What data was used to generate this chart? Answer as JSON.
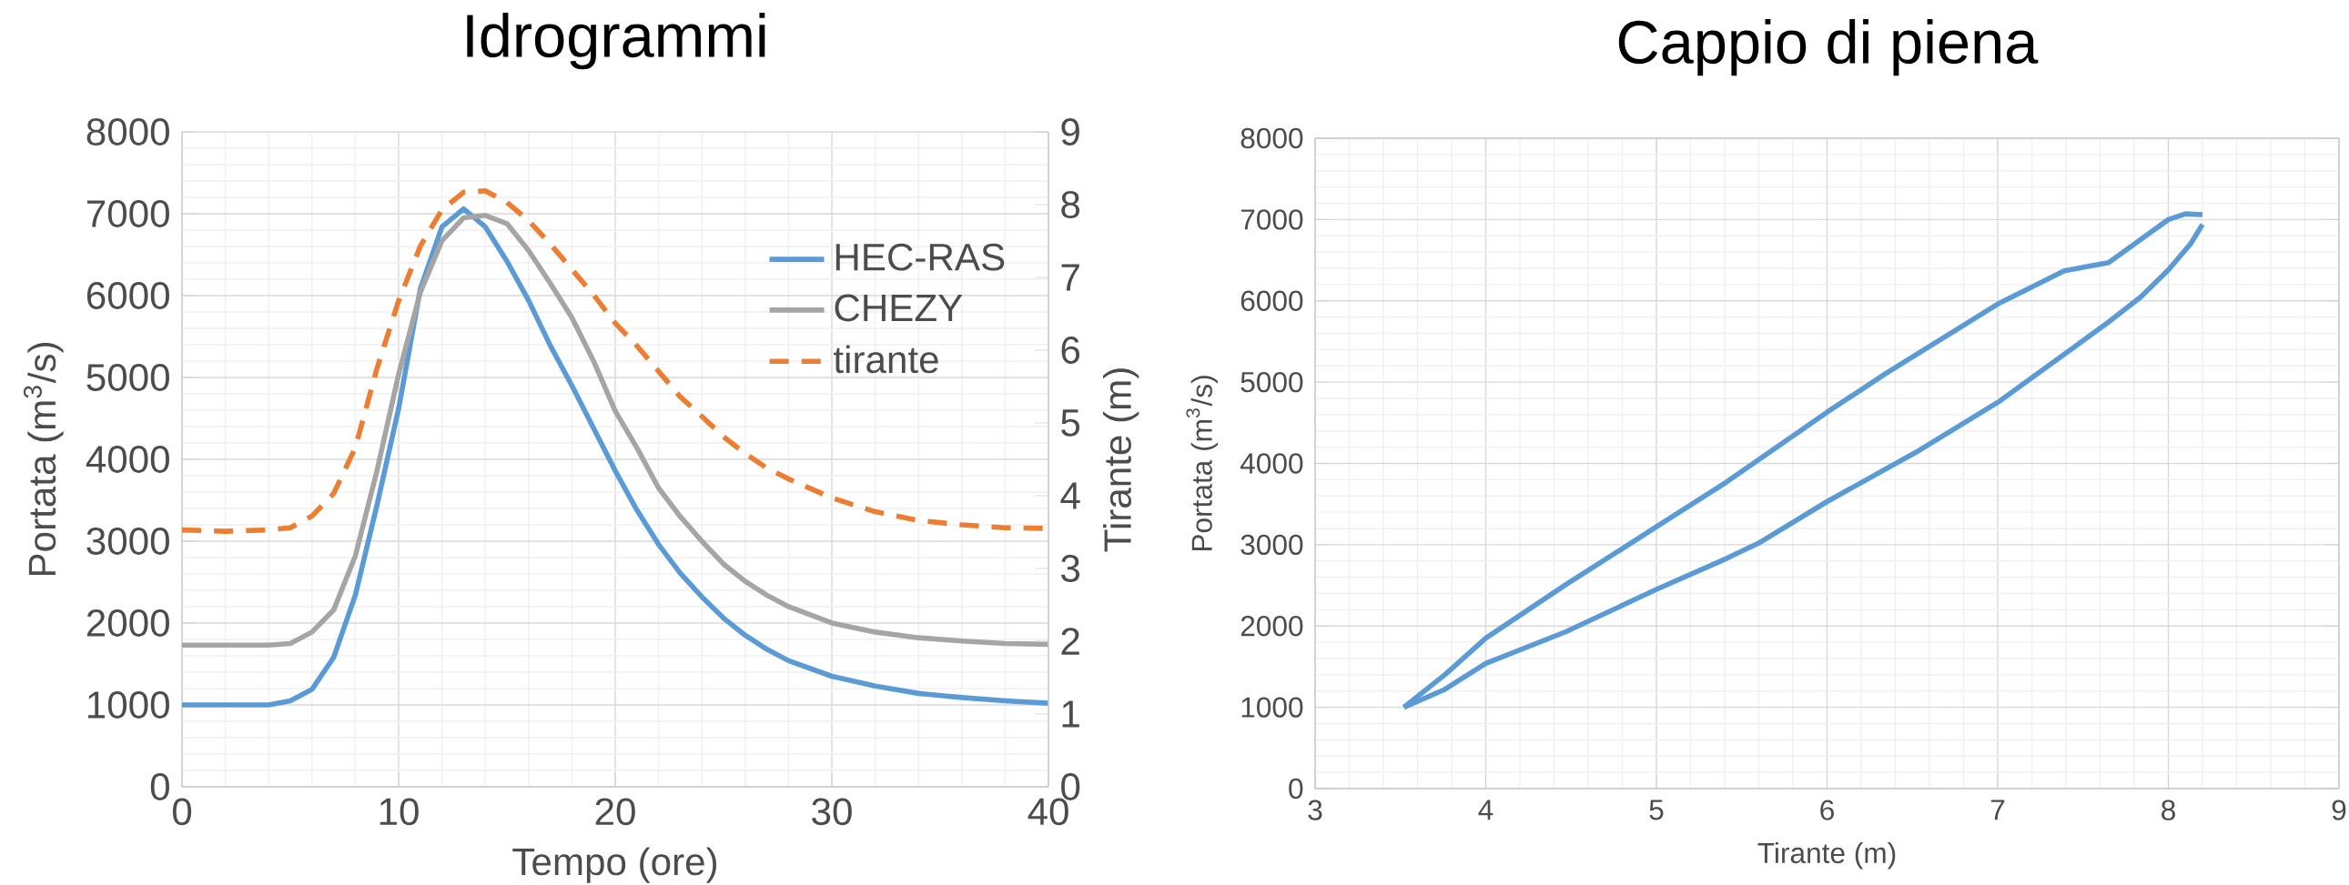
{
  "chart_data": [
    {
      "type": "line",
      "title": "Idrogrammi",
      "xlabel": "Tempo (ore)",
      "ylabel": "Portata (m$^{3}$/s)",
      "y2label": "Tirante (m)",
      "x": [
        0,
        2,
        4,
        5,
        6,
        7,
        8,
        9,
        10,
        11,
        12,
        13,
        14,
        15,
        16,
        17,
        18,
        19,
        20,
        21,
        22,
        23,
        24,
        25,
        26,
        27,
        28,
        30,
        32,
        34,
        36,
        38,
        40
      ],
      "series": [
        {
          "name": "HEC-RAS",
          "color": "#5b9bd5",
          "values": [
            1000,
            1000,
            1000,
            1050,
            1190,
            1580,
            2340,
            3440,
            4620,
            6080,
            6840,
            7060,
            6840,
            6420,
            5940,
            5390,
            4900,
            4380,
            3860,
            3380,
            2960,
            2610,
            2320,
            2060,
            1850,
            1680,
            1540,
            1350,
            1230,
            1140,
            1090,
            1050,
            1020
          ]
        },
        {
          "name": "CHEZY",
          "color": "#a5a5a5",
          "values": [
            1730,
            1730,
            1730,
            1750,
            1890,
            2160,
            2820,
            3860,
            5040,
            6040,
            6670,
            6950,
            6980,
            6880,
            6550,
            6150,
            5730,
            5200,
            4590,
            4140,
            3650,
            3300,
            3000,
            2720,
            2510,
            2340,
            2200,
            2000,
            1890,
            1820,
            1780,
            1750,
            1740
          ]
        },
        {
          "name": "tirante",
          "color": "#ed7d31",
          "axis": "y2",
          "line_style": "dashed",
          "values": [
            3.53,
            3.51,
            3.53,
            3.56,
            3.72,
            4.03,
            4.66,
            5.75,
            6.68,
            7.43,
            7.93,
            8.17,
            8.19,
            8.03,
            7.78,
            7.46,
            7.11,
            6.76,
            6.37,
            6.06,
            5.71,
            5.36,
            5.09,
            4.81,
            4.58,
            4.38,
            4.23,
            3.97,
            3.78,
            3.66,
            3.6,
            3.56,
            3.55
          ]
        }
      ],
      "xlim": [
        0,
        40
      ],
      "xticks": [
        0,
        10,
        20,
        30,
        40
      ],
      "ylim": [
        0,
        8000
      ],
      "yticks": [
        0,
        1000,
        2000,
        3000,
        4000,
        5000,
        6000,
        7000,
        8000
      ],
      "y2lim": [
        0,
        9
      ],
      "y2ticks": [
        0,
        1,
        2,
        3,
        4,
        5,
        6,
        7,
        8,
        9
      ],
      "grid": true,
      "legend": "top right"
    },
    {
      "type": "line",
      "title": "Cappio di piena",
      "xlabel": "Tirante (m)",
      "ylabel": "Portata (m$^{3}$/s)",
      "series": [
        {
          "color": "#5b9bd5",
          "x": [
            3.52,
            3.76,
            4.0,
            4.47,
            5.0,
            5.41,
            6.0,
            6.34,
            7.0,
            7.39,
            7.65,
            8.0,
            8.1,
            8.2
          ],
          "values": [
            1000,
            1400,
            1850,
            2510,
            3220,
            3770,
            4630,
            5100,
            5960,
            6370,
            6470,
            7000,
            7070,
            7060
          ]
        },
        {
          "color": "#5b9bd5",
          "x": [
            8.2,
            8.13,
            8.0,
            7.84,
            7.65,
            7.46,
            7.0,
            6.54,
            6.0,
            5.6,
            5.41,
            5.0,
            4.47,
            4.0,
            3.76,
            3.52
          ],
          "values": [
            6940,
            6700,
            6380,
            6050,
            5740,
            5450,
            4750,
            4160,
            3530,
            3020,
            2830,
            2450,
            1930,
            1540,
            1220,
            1000
          ]
        }
      ],
      "xlim": [
        3,
        9
      ],
      "xticks": [
        3,
        4,
        5,
        6,
        7,
        8,
        9
      ],
      "ylim": [
        0,
        8000
      ],
      "yticks": [
        0,
        1000,
        2000,
        3000,
        4000,
        5000,
        6000,
        7000,
        8000
      ],
      "grid": true
    }
  ]
}
